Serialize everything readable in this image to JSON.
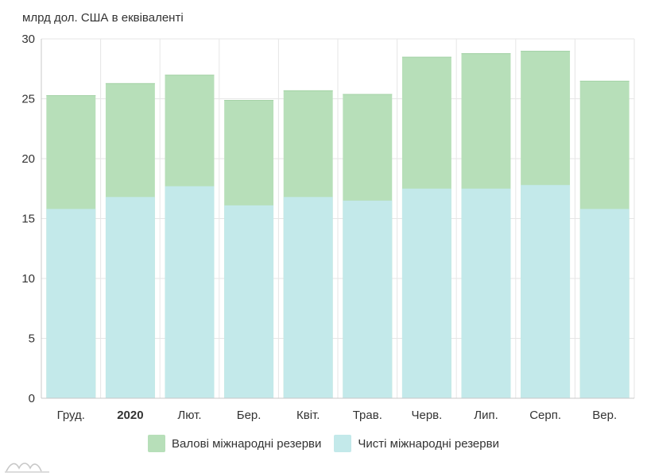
{
  "chart_data": {
    "type": "bar",
    "stacked": false,
    "overlapping": true,
    "unit_label": "млрд дол. США в еквіваленті",
    "categories": [
      "Груд.",
      "2020",
      "Лют.",
      "Бер.",
      "Квіт.",
      "Трав.",
      "Черв.",
      "Лип.",
      "Серп.",
      "Вер."
    ],
    "bold_categories": [
      "2020"
    ],
    "ylim": [
      0,
      30
    ],
    "yticks": [
      0,
      5,
      10,
      15,
      20,
      25,
      30
    ],
    "grid": true,
    "legend_position": "bottom",
    "series": [
      {
        "name": "Валові міжнародні резерви",
        "color": "#b7dfb9",
        "values": [
          25.3,
          26.3,
          27.0,
          24.9,
          25.7,
          25.4,
          28.5,
          28.8,
          29.0,
          26.5
        ]
      },
      {
        "name": "Чисті міжнародні резерви",
        "color": "#c3e9ea",
        "values": [
          15.8,
          16.8,
          17.7,
          16.1,
          16.8,
          16.5,
          17.5,
          17.5,
          17.8,
          15.8
        ]
      }
    ]
  }
}
